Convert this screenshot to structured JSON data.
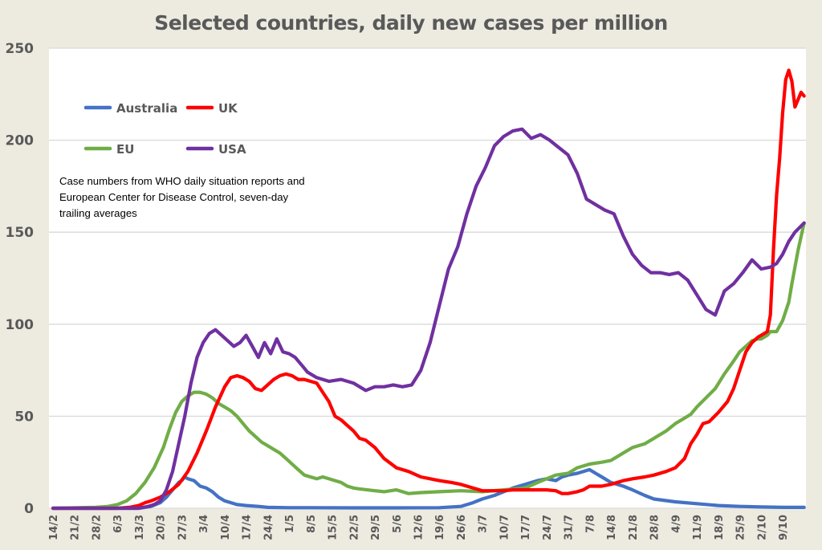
{
  "chart_data": {
    "type": "line",
    "title": "Selected countries, daily new cases per million",
    "xlabel": "",
    "ylabel": "",
    "ylim": [
      0,
      250
    ],
    "yticks": [
      "0",
      "50",
      "100",
      "150",
      "200",
      "250"
    ],
    "ytick_values": [
      0,
      50,
      100,
      150,
      200,
      250
    ],
    "grid": true,
    "legend_position": "top-left",
    "annotation": "Case numbers from WHO daily situation reports and European Center for Disease Control, seven-day trailing averages",
    "x_start": "14/2",
    "x_unit": "days since 14/2",
    "x_range": [
      0,
      245
    ],
    "xtick_labels": [
      "14/2",
      "21/2",
      "28/2",
      "6/3",
      "13/3",
      "20/3",
      "27/3",
      "3/4",
      "10/4",
      "17/4",
      "24/4",
      "1/5",
      "8/5",
      "15/5",
      "22/5",
      "29/5",
      "5/6",
      "12/6",
      "19/6",
      "26/6",
      "3/7",
      "10/7",
      "17/7",
      "24/7",
      "31/7",
      "7/8",
      "14/8",
      "21/8",
      "28/8",
      "4/9",
      "11/9",
      "18/9",
      "25/9",
      "2/10",
      "9/10"
    ],
    "xtick_days": [
      0,
      7,
      14,
      21,
      28,
      35,
      42,
      49,
      56,
      63,
      70,
      77,
      84,
      91,
      98,
      105,
      112,
      119,
      126,
      133,
      140,
      147,
      154,
      161,
      168,
      175,
      182,
      189,
      196,
      203,
      210,
      217,
      224,
      231,
      238
    ],
    "series": [
      {
        "name": "Australia",
        "color": "#4472c4",
        "x": [
          0,
          20,
          28,
          32,
          35,
          37,
          39,
          41,
          42,
          43,
          44,
          46,
          48,
          50,
          52,
          54,
          56,
          60,
          63,
          67,
          70,
          77,
          84,
          98,
          112,
          126,
          133,
          137,
          140,
          144,
          147,
          150,
          154,
          158,
          161,
          164,
          166,
          168,
          171,
          173,
          175,
          176,
          177,
          179,
          182,
          186,
          189,
          193,
          196,
          203,
          210,
          217,
          224,
          231,
          238,
          245
        ],
        "values": [
          0,
          0,
          0,
          1,
          3,
          6,
          10,
          14,
          15,
          17,
          16,
          15,
          12,
          11,
          9,
          6,
          4,
          2,
          1.5,
          1,
          0.5,
          0.3,
          0.3,
          0.2,
          0.2,
          0.3,
          1,
          3,
          5,
          7,
          9,
          11,
          13,
          15,
          16,
          15,
          17,
          18,
          19,
          20,
          21,
          20,
          19,
          17,
          14,
          12,
          10,
          7,
          5,
          3.5,
          2.5,
          1.5,
          1,
          0.7,
          0.5,
          0.5
        ]
      },
      {
        "name": "UK",
        "color": "#ff0000",
        "x": [
          0,
          21,
          25,
          28,
          30,
          32,
          35,
          38,
          41,
          44,
          47,
          50,
          53,
          56,
          58,
          60,
          62,
          64,
          66,
          68,
          70,
          72,
          74,
          76,
          78,
          80,
          82,
          84,
          86,
          88,
          90,
          92,
          94,
          96,
          98,
          100,
          102,
          105,
          108,
          112,
          116,
          120,
          126,
          130,
          133,
          137,
          140,
          144,
          147,
          150,
          154,
          158,
          161,
          164,
          166,
          168,
          171,
          173,
          175,
          177,
          179,
          182,
          186,
          189,
          193,
          196,
          200,
          203,
          206,
          208,
          210,
          212,
          214,
          217,
          220,
          222,
          224,
          226,
          228,
          230,
          231,
          232,
          233,
          234,
          235,
          236,
          237,
          238,
          239,
          240,
          241,
          242,
          243,
          244,
          245
        ],
        "values": [
          0,
          0,
          0.5,
          1.5,
          3,
          4,
          6,
          9,
          13,
          20,
          30,
          42,
          55,
          66,
          71,
          72,
          71,
          69,
          65,
          64,
          67,
          70,
          72,
          73,
          72,
          70,
          70,
          69,
          68,
          63,
          58,
          50,
          48,
          45,
          42,
          38,
          37,
          33,
          27,
          22,
          20,
          17,
          15,
          14,
          13,
          11,
          9.5,
          9.5,
          9.5,
          10,
          10,
          10,
          10,
          9.5,
          8,
          8,
          9,
          10,
          12,
          12,
          12,
          13,
          15,
          16,
          17,
          18,
          20,
          22,
          27,
          35,
          40,
          46,
          47,
          52,
          58,
          65,
          75,
          85,
          90,
          93,
          94,
          95,
          96,
          105,
          140,
          170,
          190,
          215,
          233,
          238,
          232,
          218,
          222,
          226,
          224
        ]
      },
      {
        "name": "EU",
        "color": "#70ad47",
        "x": [
          0,
          14,
          18,
          21,
          24,
          27,
          30,
          33,
          36,
          38,
          40,
          42,
          44,
          46,
          48,
          50,
          52,
          54,
          56,
          58,
          60,
          62,
          64,
          66,
          68,
          70,
          72,
          74,
          76,
          78,
          80,
          82,
          84,
          86,
          88,
          90,
          92,
          94,
          96,
          98,
          100,
          105,
          108,
          112,
          116,
          120,
          126,
          133,
          140,
          147,
          154,
          158,
          161,
          164,
          168,
          171,
          175,
          179,
          182,
          184,
          186,
          189,
          193,
          196,
          200,
          203,
          206,
          208,
          210,
          213,
          216,
          219,
          222,
          224,
          226,
          228,
          230,
          231,
          232,
          233,
          234,
          236,
          238,
          240,
          241,
          243,
          245
        ],
        "values": [
          0,
          0.5,
          1,
          2,
          4,
          8,
          14,
          22,
          33,
          43,
          52,
          58,
          61,
          63,
          63,
          62,
          60,
          57,
          55,
          53,
          50,
          46,
          42,
          39,
          36,
          34,
          32,
          30,
          27,
          24,
          21,
          18,
          17,
          16,
          17,
          16,
          15,
          14,
          12,
          11,
          10.5,
          9.5,
          9,
          10,
          8,
          8.5,
          9,
          9.5,
          9,
          10,
          11,
          14,
          16,
          18,
          19,
          22,
          24,
          25,
          26,
          28,
          30,
          33,
          35,
          38,
          42,
          46,
          49,
          51,
          55,
          60,
          65,
          73,
          80,
          85,
          88,
          91,
          92,
          92,
          93,
          94,
          96,
          96,
          102,
          112,
          122,
          140,
          155
        ]
      },
      {
        "name": "USA",
        "color": "#7030a0",
        "x": [
          0,
          28,
          31,
          33,
          35,
          37,
          39,
          41,
          43,
          45,
          47,
          49,
          51,
          53,
          55,
          57,
          59,
          61,
          63,
          65,
          67,
          69,
          71,
          73,
          75,
          77,
          79,
          81,
          83,
          86,
          90,
          94,
          98,
          102,
          105,
          108,
          111,
          114,
          117,
          120,
          123,
          126,
          129,
          132,
          135,
          138,
          141,
          144,
          147,
          150,
          153,
          156,
          159,
          162,
          165,
          168,
          171,
          174,
          177,
          180,
          183,
          186,
          189,
          192,
          195,
          198,
          201,
          204,
          207,
          210,
          213,
          216,
          219,
          222,
          225,
          228,
          231,
          234,
          236,
          238,
          240,
          242,
          245
        ],
        "values": [
          0,
          0,
          1,
          2,
          4,
          10,
          20,
          35,
          50,
          68,
          82,
          90,
          95,
          97,
          94,
          91,
          88,
          90,
          94,
          88,
          82,
          90,
          84,
          92,
          85,
          84,
          82,
          78,
          74,
          71,
          69,
          70,
          68,
          64,
          66,
          66,
          67,
          66,
          67,
          75,
          90,
          110,
          130,
          142,
          160,
          175,
          185,
          197,
          202,
          205,
          206,
          201,
          203,
          200,
          196,
          192,
          182,
          168,
          165,
          162,
          160,
          148,
          138,
          132,
          128,
          128,
          127,
          128,
          124,
          116,
          108,
          105,
          118,
          122,
          128,
          135,
          130,
          131,
          133,
          138,
          145,
          150,
          155
        ]
      }
    ]
  },
  "legend": {
    "items": [
      {
        "label": "Australia",
        "color": "#4472c4"
      },
      {
        "label": "UK",
        "color": "#ff0000"
      },
      {
        "label": "EU",
        "color": "#70ad47"
      },
      {
        "label": "USA",
        "color": "#7030a0"
      }
    ]
  },
  "note": "Case numbers from WHO daily situation reports and European Center for Disease Control, seven-day trailing averages"
}
